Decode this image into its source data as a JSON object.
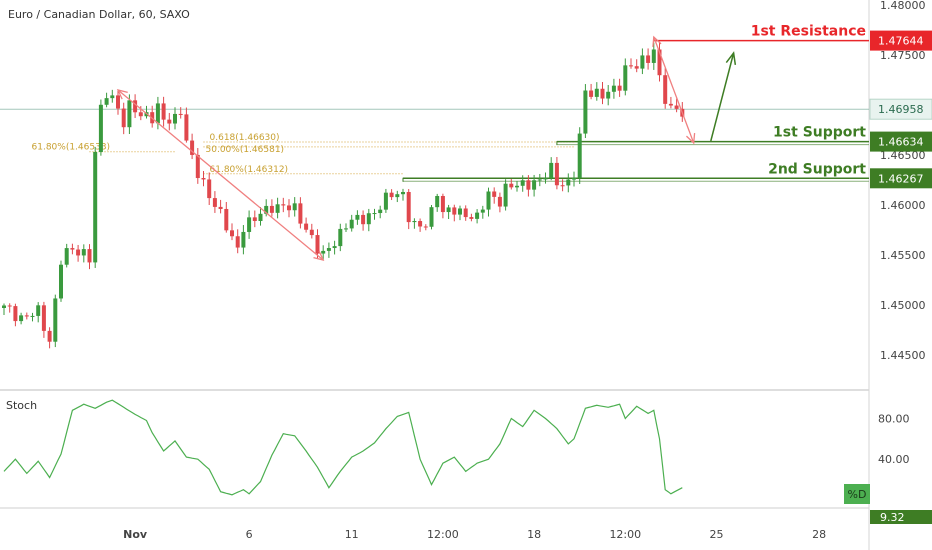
{
  "header": {
    "title": "Euro / Canadian Dollar, 60, SAXO"
  },
  "colors": {
    "up": "#3a9a3e",
    "down": "#e0474c",
    "resistance": "#e8262a",
    "support": "#3e7d24",
    "stoch": "#4caf50",
    "fib": "#d4a43a",
    "arrow_red": "#f08080",
    "arrow_green": "#3e7d24"
  },
  "chart_data": {
    "type": "candlestick",
    "price_axis": {
      "ticks": [
        "1.48000",
        "1.47500",
        "1.46500",
        "1.46000",
        "1.45500",
        "1.45000",
        "1.44500"
      ],
      "tick_values": [
        1.48,
        1.475,
        1.465,
        1.46,
        1.455,
        1.45,
        1.445
      ],
      "ylim": [
        1.4415,
        1.4805
      ]
    },
    "time_axis": {
      "ticks": [
        "Nov",
        "6",
        "11",
        "12:00",
        "18",
        "12:00",
        "25",
        "28"
      ],
      "tick_index": [
        23,
        43,
        61,
        77,
        93,
        109,
        125,
        143
      ]
    },
    "levels": [
      {
        "name": "1st Resistance",
        "value": 1.47644,
        "label": "1.47644",
        "kind": "resistance",
        "from": 114
      },
      {
        "name": "1st Support",
        "value": 1.46634,
        "label": "1.46634",
        "kind": "support",
        "from": 97
      },
      {
        "name": "2nd Support",
        "value": 1.46267,
        "label": "1.46267",
        "kind": "support",
        "from": 70
      }
    ],
    "current_price": {
      "value": 1.46958,
      "label": "1.46958"
    },
    "fib_labels": [
      {
        "text": "61.80%(1.46533)",
        "value": 1.46533,
        "from": 15,
        "to": 30
      },
      {
        "text": "0.618(1.46630)",
        "value": 1.4663,
        "from": 35,
        "to": 100
      },
      {
        "text": "50.00%(1.46581)",
        "value": 1.46581,
        "from": 35,
        "to": 100
      },
      {
        "text": "61.80%(1.46312)",
        "value": 1.46312,
        "from": 35,
        "to": 70
      }
    ],
    "arrows_red": [
      {
        "from": [
          20,
          1.4715
        ],
        "to": [
          56,
          1.4545
        ]
      },
      {
        "from": [
          114,
          1.4768
        ],
        "to": [
          121,
          1.4662
        ]
      }
    ],
    "arrow_green": {
      "from": [
        124,
        1.4664
      ],
      "to": [
        128,
        1.4752
      ]
    },
    "price_path": [
      [
        0,
        1.4497
      ],
      [
        3,
        1.4488
      ],
      [
        6,
        1.4492
      ],
      [
        8,
        1.4465
      ],
      [
        10,
        1.4545
      ],
      [
        12,
        1.4555
      ],
      [
        14,
        1.4553
      ],
      [
        15,
        1.4548
      ],
      [
        16,
        1.465
      ],
      [
        17,
        1.4695
      ],
      [
        18,
        1.4712
      ],
      [
        19,
        1.4707
      ],
      [
        20,
        1.47
      ],
      [
        21,
        1.468
      ],
      [
        22,
        1.4697
      ],
      [
        23,
        1.4696
      ],
      [
        24,
        1.4688
      ],
      [
        25,
        1.4693
      ],
      [
        26,
        1.4688
      ],
      [
        27,
        1.4695
      ],
      [
        28,
        1.4685
      ],
      [
        29,
        1.4683
      ],
      [
        30,
        1.4688
      ],
      [
        31,
        1.4698
      ],
      [
        32,
        1.4662
      ],
      [
        34,
        1.463
      ],
      [
        36,
        1.4612
      ],
      [
        38,
        1.459
      ],
      [
        40,
        1.4565
      ],
      [
        41,
        1.4558
      ],
      [
        42,
        1.458
      ],
      [
        44,
        1.4585
      ],
      [
        46,
        1.4595
      ],
      [
        47,
        1.46
      ],
      [
        49,
        1.4598
      ],
      [
        51,
        1.4595
      ],
      [
        53,
        1.4578
      ],
      [
        55,
        1.4555
      ],
      [
        56,
        1.4548
      ],
      [
        57,
        1.4557
      ],
      [
        58,
        1.4565
      ],
      [
        60,
        1.458
      ],
      [
        62,
        1.4585
      ],
      [
        64,
        1.459
      ],
      [
        66,
        1.4597
      ],
      [
        68,
        1.4612
      ],
      [
        70,
        1.4612
      ],
      [
        71,
        1.4588
      ],
      [
        72,
        1.4577
      ],
      [
        73,
        1.4578
      ],
      [
        74,
        1.4582
      ],
      [
        75,
        1.4595
      ],
      [
        76,
        1.4615
      ],
      [
        77,
        1.459
      ],
      [
        79,
        1.4595
      ],
      [
        81,
        1.4592
      ],
      [
        83,
        1.4585
      ],
      [
        85,
        1.4612
      ],
      [
        87,
        1.4605
      ],
      [
        88,
        1.4615
      ],
      [
        90,
        1.462
      ],
      [
        92,
        1.4623
      ],
      [
        94,
        1.4622
      ],
      [
        96,
        1.4637
      ],
      [
        97,
        1.4625
      ],
      [
        99,
        1.462
      ],
      [
        100,
        1.463
      ],
      [
        101,
        1.4667
      ],
      [
        102,
        1.4715
      ],
      [
        103,
        1.4715
      ],
      [
        105,
        1.4708
      ],
      [
        107,
        1.4715
      ],
      [
        108,
        1.4722
      ],
      [
        109,
        1.4738
      ],
      [
        111,
        1.4738
      ],
      [
        113,
        1.4747
      ],
      [
        114,
        1.4758
      ],
      [
        115,
        1.4727
      ],
      [
        116,
        1.4705
      ],
      [
        117,
        1.4693
      ],
      [
        118,
        1.4696
      ],
      [
        119,
        1.4694
      ]
    ],
    "stoch": {
      "label": "Stoch",
      "legend": "%D",
      "ticks": [
        "80.00",
        "40.00"
      ],
      "tick_values": [
        80,
        40
      ],
      "current_label": "9.32",
      "ylim": [
        -8,
        108
      ],
      "path": [
        [
          0,
          28
        ],
        [
          2,
          40
        ],
        [
          4,
          26
        ],
        [
          6,
          38
        ],
        [
          8,
          22
        ],
        [
          10,
          45
        ],
        [
          12,
          88
        ],
        [
          14,
          94
        ],
        [
          16,
          90
        ],
        [
          18,
          96
        ],
        [
          19,
          98
        ],
        [
          21,
          91
        ],
        [
          23,
          84
        ],
        [
          25,
          78
        ],
        [
          26,
          66
        ],
        [
          28,
          48
        ],
        [
          30,
          58
        ],
        [
          32,
          42
        ],
        [
          34,
          40
        ],
        [
          36,
          30
        ],
        [
          38,
          8
        ],
        [
          40,
          5
        ],
        [
          42,
          10
        ],
        [
          43,
          6
        ],
        [
          45,
          18
        ],
        [
          47,
          44
        ],
        [
          49,
          65
        ],
        [
          51,
          63
        ],
        [
          53,
          48
        ],
        [
          55,
          32
        ],
        [
          57,
          12
        ],
        [
          59,
          28
        ],
        [
          61,
          42
        ],
        [
          63,
          48
        ],
        [
          65,
          56
        ],
        [
          67,
          70
        ],
        [
          69,
          82
        ],
        [
          71,
          86
        ],
        [
          73,
          40
        ],
        [
          75,
          15
        ],
        [
          77,
          36
        ],
        [
          79,
          42
        ],
        [
          81,
          28
        ],
        [
          83,
          36
        ],
        [
          85,
          40
        ],
        [
          87,
          55
        ],
        [
          89,
          80
        ],
        [
          91,
          72
        ],
        [
          93,
          88
        ],
        [
          95,
          80
        ],
        [
          97,
          70
        ],
        [
          99,
          55
        ],
        [
          100,
          60
        ],
        [
          102,
          90
        ],
        [
          104,
          93
        ],
        [
          106,
          91
        ],
        [
          108,
          94
        ],
        [
          109,
          80
        ],
        [
          111,
          92
        ],
        [
          113,
          85
        ],
        [
          114,
          88
        ],
        [
          115,
          60
        ],
        [
          116,
          10
        ],
        [
          117,
          6
        ],
        [
          119,
          12
        ]
      ]
    }
  }
}
